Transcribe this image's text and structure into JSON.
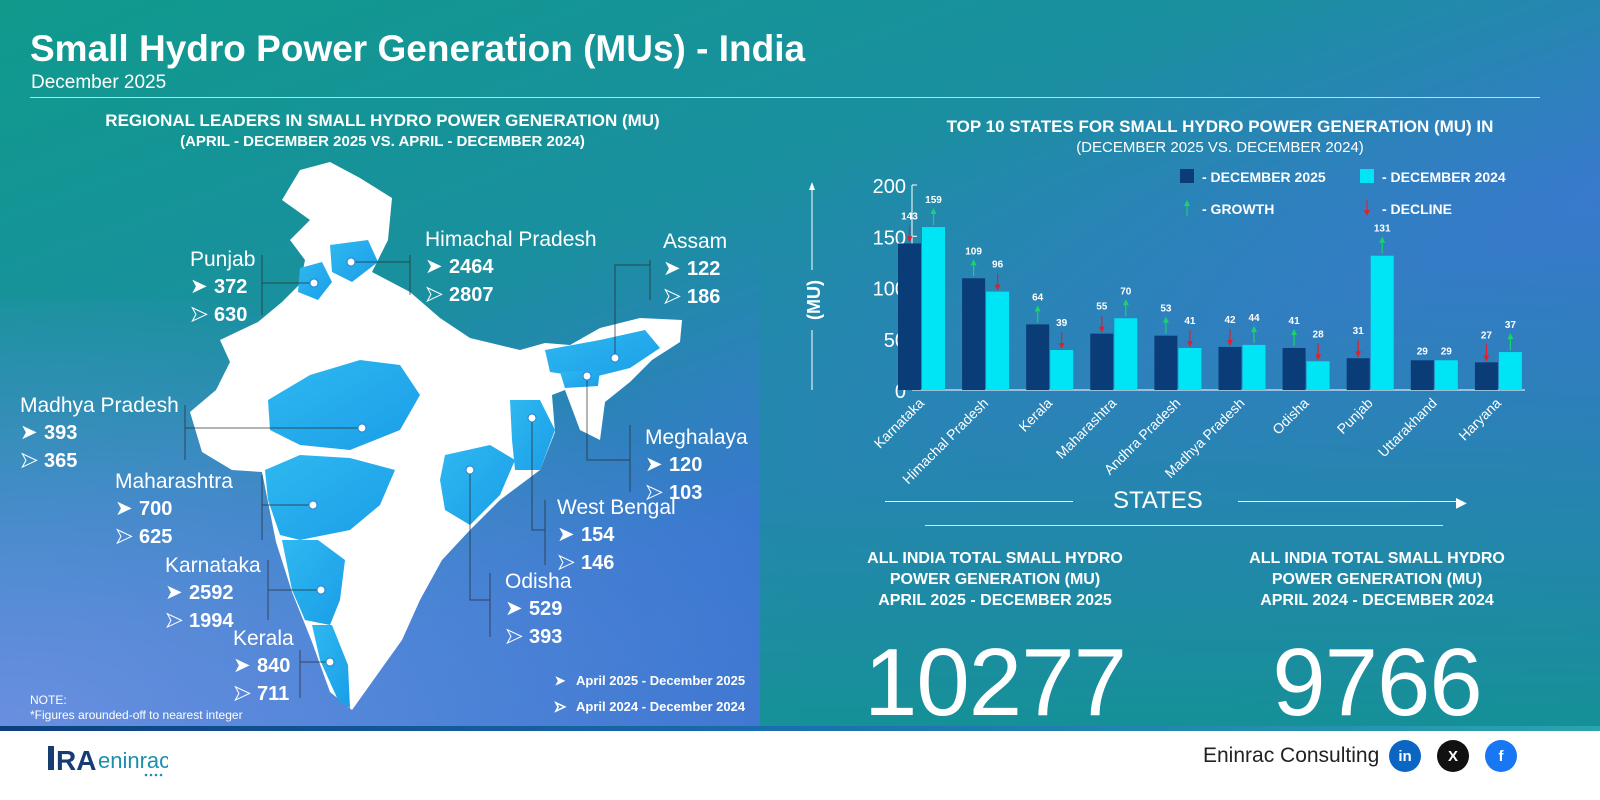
{
  "header": {
    "title": "Small Hydro Power Generation (MUs) - India",
    "subtitle": "December 2025"
  },
  "map_section": {
    "title": "REGIONAL LEADERS IN SMALL HYDRO POWER GENERATION (MU)",
    "subtitle": "(APRIL - DECEMBER 2025 VS. APRIL - DECEMBER 2024)",
    "states": [
      {
        "name": "Punjab",
        "current": "372",
        "previous": "630"
      },
      {
        "name": "Himachal Pradesh",
        "current": "2464",
        "previous": "2807"
      },
      {
        "name": "Assam",
        "current": "122",
        "previous": "186"
      },
      {
        "name": "Madhya Pradesh",
        "current": "393",
        "previous": "365"
      },
      {
        "name": "Meghalaya",
        "current": "120",
        "previous": "103"
      },
      {
        "name": "Maharashtra",
        "current": "700",
        "previous": "625"
      },
      {
        "name": "West Bengal",
        "current": "154",
        "previous": "146"
      },
      {
        "name": "Karnataka",
        "current": "2592",
        "previous": "1994"
      },
      {
        "name": "Odisha",
        "current": "529",
        "previous": "393"
      },
      {
        "name": "Kerala",
        "current": "840",
        "previous": "711"
      }
    ],
    "legend": {
      "current": "April 2025 - December 2025",
      "previous": "April 2024 - December 2024"
    },
    "note": {
      "label": "NOTE:",
      "text": "*Figures arounded-off to nearest integer"
    }
  },
  "chart_data": {
    "type": "bar",
    "title": "TOP 10 STATES FOR SMALL HYDRO POWER GENERATION (MU) IN",
    "subtitle": "(DECEMBER 2025 VS. DECEMBER 2024)",
    "xlabel": "STATES",
    "ylabel": "(MU)",
    "ylim": [
      0,
      200
    ],
    "yticks": [
      0,
      50,
      100,
      150,
      200
    ],
    "categories": [
      "Karnataka",
      "Himachal Pradesh",
      "Kerala",
      "Maharashtra",
      "Andhra Pradesh",
      "Madhya Pradesh",
      "Odisha",
      "Punjab",
      "Uttarakhand",
      "Haryana"
    ],
    "series": [
      {
        "name": "DECEMBER 2025",
        "color": "#0a3c78",
        "values": [
          143,
          109,
          64,
          55,
          53,
          42,
          41,
          31,
          29,
          27
        ],
        "indicators": [
          "decline",
          "growth",
          "growth",
          "decline",
          "growth",
          "decline",
          "growth",
          "decline",
          "none",
          "decline"
        ]
      },
      {
        "name": "DECEMBER 2024",
        "color": "#00e5f5",
        "values": [
          159,
          96,
          39,
          70,
          41,
          44,
          28,
          131,
          29,
          37
        ],
        "indicators": [
          "growth",
          "decline",
          "decline",
          "growth",
          "decline",
          "growth",
          "decline",
          "growth",
          "none",
          "growth"
        ]
      }
    ],
    "indicator_legend": {
      "growth": "GROWTH",
      "decline": "DECLINE",
      "growth_color": "#19d46a",
      "decline_color": "#e0202a"
    },
    "legend": "top-right",
    "grid": false
  },
  "totals": [
    {
      "line1": "ALL INDIA TOTAL SMALL HYDRO",
      "line2": "POWER GENERATION (MU)",
      "line3": "APRIL 2025 - DECEMBER 2025",
      "value": "10277"
    },
    {
      "line1": "ALL INDIA TOTAL SMALL HYDRO",
      "line2": "POWER GENERATION (MU)",
      "line3": "APRIL 2024 - DECEMBER 2024",
      "value": "9766"
    }
  ],
  "footer": {
    "logo": "RAC eninrac",
    "brand": "Eninrac Consulting",
    "social": [
      {
        "icon": "linkedin-icon",
        "label": "in",
        "color": "#0a66c2"
      },
      {
        "icon": "x-icon",
        "label": "X",
        "color": "#111111"
      },
      {
        "icon": "facebook-icon",
        "label": "f",
        "color": "#1877f2"
      }
    ]
  }
}
